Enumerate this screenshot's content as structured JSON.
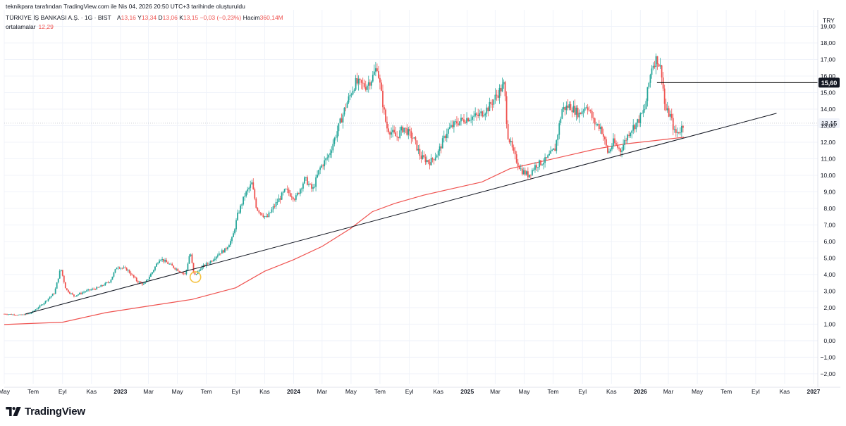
{
  "header": {
    "generated_line": "teknikpara tarafından TradingView.com ile Nis 04, 2026 20:50 UTC+3 tarihinde oluşturuldu",
    "symbol": "TÜRKİYE İŞ BANKASI A.Ş. · 1G · BIST",
    "ohlc": [
      {
        "label": "A",
        "value": "13,16"
      },
      {
        "label": "Y",
        "value": "13,34"
      },
      {
        "label": "D",
        "value": "13,06"
      },
      {
        "label": "K",
        "value": "13,15"
      }
    ],
    "change": "−0,03 (−0,23%)",
    "volume_label": "Hacim",
    "volume_value": "360,14M",
    "ma_label": "ortalamalar",
    "ma_value": "12,29"
  },
  "brand": {
    "text": "TradingView"
  },
  "colors": {
    "up": "#26a69a",
    "down": "#ef5350",
    "ma": "#ef5350",
    "trendline": "#131722",
    "grid": "#f0f3fa",
    "axis_text": "#131722",
    "marker": "#f5c242"
  },
  "chart_data": {
    "type": "candlestick",
    "currency": "TRY",
    "y_axis": {
      "range": [
        -2.6,
        20.0
      ],
      "ticks": [
        "−2,00",
        "−1,00",
        "0,00",
        "1,00",
        "2,00",
        "3,00",
        "4,00",
        "5,00",
        "6,00",
        "7,00",
        "8,00",
        "9,00",
        "10,00",
        "11,00",
        "12,00",
        "13,00",
        "14,00",
        "15,00",
        "16,00",
        "17,00",
        "18,00",
        "19,00"
      ],
      "tick_values": [
        -2,
        -1,
        0,
        1,
        2,
        3,
        4,
        5,
        6,
        7,
        8,
        9,
        10,
        11,
        12,
        13,
        14,
        15,
        16,
        17,
        18,
        19
      ]
    },
    "x_axis": {
      "range": [
        "2022-05-01",
        "2027-01-10"
      ],
      "ticks": [
        {
          "label": "May",
          "date": "2022-05-01",
          "bold": false
        },
        {
          "label": "Tem",
          "date": "2022-07-01",
          "bold": false
        },
        {
          "label": "Eyl",
          "date": "2022-09-01",
          "bold": false
        },
        {
          "label": "Kas",
          "date": "2022-11-01",
          "bold": false
        },
        {
          "label": "2023",
          "date": "2023-01-01",
          "bold": true
        },
        {
          "label": "Mar",
          "date": "2023-03-01",
          "bold": false
        },
        {
          "label": "May",
          "date": "2023-05-01",
          "bold": false
        },
        {
          "label": "Tem",
          "date": "2023-07-01",
          "bold": false
        },
        {
          "label": "Eyl",
          "date": "2023-09-01",
          "bold": false
        },
        {
          "label": "Kas",
          "date": "2023-11-01",
          "bold": false
        },
        {
          "label": "2024",
          "date": "2024-01-01",
          "bold": true
        },
        {
          "label": "Mar",
          "date": "2024-03-01",
          "bold": false
        },
        {
          "label": "May",
          "date": "2024-05-01",
          "bold": false
        },
        {
          "label": "Tem",
          "date": "2024-07-01",
          "bold": false
        },
        {
          "label": "Eyl",
          "date": "2024-09-01",
          "bold": false
        },
        {
          "label": "Kas",
          "date": "2024-11-01",
          "bold": false
        },
        {
          "label": "2025",
          "date": "2025-01-01",
          "bold": true
        },
        {
          "label": "Mar",
          "date": "2025-03-01",
          "bold": false
        },
        {
          "label": "May",
          "date": "2025-05-01",
          "bold": false
        },
        {
          "label": "Tem",
          "date": "2025-07-01",
          "bold": false
        },
        {
          "label": "Eyl",
          "date": "2025-09-01",
          "bold": false
        },
        {
          "label": "Kas",
          "date": "2025-11-01",
          "bold": false
        },
        {
          "label": "2026",
          "date": "2026-01-01",
          "bold": true
        },
        {
          "label": "Mar",
          "date": "2026-03-01",
          "bold": false
        },
        {
          "label": "May",
          "date": "2026-05-01",
          "bold": false
        },
        {
          "label": "Tem",
          "date": "2026-07-01",
          "bold": false
        },
        {
          "label": "Eyl",
          "date": "2026-09-01",
          "bold": false
        },
        {
          "label": "Kas",
          "date": "2026-11-01",
          "bold": false
        },
        {
          "label": "2027",
          "date": "2027-01-01",
          "bold": true
        }
      ]
    },
    "price_path": [
      [
        "2022-05-01",
        1.62
      ],
      [
        "2022-06-05",
        1.55
      ],
      [
        "2022-06-25",
        1.65
      ],
      [
        "2022-07-20",
        2.2
      ],
      [
        "2022-08-15",
        2.9
      ],
      [
        "2022-08-28",
        4.4
      ],
      [
        "2022-09-08",
        3.1
      ],
      [
        "2022-09-25",
        2.7
      ],
      [
        "2022-10-20",
        3.0
      ],
      [
        "2022-11-15",
        3.2
      ],
      [
        "2022-12-10",
        3.6
      ],
      [
        "2022-12-25",
        4.5
      ],
      [
        "2023-01-15",
        4.3
      ],
      [
        "2023-02-05",
        3.6
      ],
      [
        "2023-02-20",
        3.4
      ],
      [
        "2023-03-10",
        4.2
      ],
      [
        "2023-03-25",
        5.0
      ],
      [
        "2023-04-15",
        4.6
      ],
      [
        "2023-05-01",
        4.3
      ],
      [
        "2023-05-18",
        4.0
      ],
      [
        "2023-05-28",
        5.4
      ],
      [
        "2023-06-05",
        3.9
      ],
      [
        "2023-06-20",
        4.4
      ],
      [
        "2023-07-10",
        4.8
      ],
      [
        "2023-07-28",
        5.3
      ],
      [
        "2023-08-10",
        5.5
      ],
      [
        "2023-08-25",
        6.2
      ],
      [
        "2023-09-05",
        7.6
      ],
      [
        "2023-09-20",
        8.8
      ],
      [
        "2023-10-05",
        9.5
      ],
      [
        "2023-10-15",
        8.0
      ],
      [
        "2023-11-05",
        7.4
      ],
      [
        "2023-11-25",
        8.3
      ],
      [
        "2023-12-15",
        9.1
      ],
      [
        "2024-01-05",
        8.6
      ],
      [
        "2024-01-25",
        9.8
      ],
      [
        "2024-02-10",
        9.1
      ],
      [
        "2024-02-25",
        10.4
      ],
      [
        "2024-03-15",
        11.2
      ],
      [
        "2024-04-01",
        12.6
      ],
      [
        "2024-04-20",
        14.2
      ],
      [
        "2024-05-10",
        15.6
      ],
      [
        "2024-06-01",
        15.4
      ],
      [
        "2024-06-15",
        15.9
      ],
      [
        "2024-06-25",
        16.6
      ],
      [
        "2024-07-05",
        14.7
      ],
      [
        "2024-07-15",
        12.9
      ],
      [
        "2024-08-05",
        12.3
      ],
      [
        "2024-08-20",
        12.9
      ],
      [
        "2024-09-10",
        12.2
      ],
      [
        "2024-09-25",
        11.1
      ],
      [
        "2024-10-15",
        10.8
      ],
      [
        "2024-11-01",
        11.4
      ],
      [
        "2024-11-20",
        12.7
      ],
      [
        "2024-12-10",
        13.2
      ],
      [
        "2025-01-05",
        13.5
      ],
      [
        "2025-01-25",
        13.6
      ],
      [
        "2025-02-15",
        14.1
      ],
      [
        "2025-03-10",
        15.1
      ],
      [
        "2025-03-20",
        15.5
      ],
      [
        "2025-03-27",
        12.5
      ],
      [
        "2025-04-10",
        11.2
      ],
      [
        "2025-04-25",
        10.3
      ],
      [
        "2025-05-10",
        10.0
      ],
      [
        "2025-05-25",
        10.6
      ],
      [
        "2025-06-15",
        10.9
      ],
      [
        "2025-07-05",
        11.6
      ],
      [
        "2025-07-20",
        14.0
      ],
      [
        "2025-08-05",
        14.2
      ],
      [
        "2025-08-25",
        13.7
      ],
      [
        "2025-09-10",
        14.3
      ],
      [
        "2025-09-25",
        13.2
      ],
      [
        "2025-10-10",
        12.9
      ],
      [
        "2025-10-25",
        11.3
      ],
      [
        "2025-11-05",
        12.0
      ],
      [
        "2025-11-20",
        11.5
      ],
      [
        "2025-12-10",
        12.7
      ],
      [
        "2025-12-28",
        13.3
      ],
      [
        "2026-01-10",
        14.0
      ],
      [
        "2026-01-25",
        16.6
      ],
      [
        "2026-02-05",
        17.1
      ],
      [
        "2026-02-15",
        16.2
      ],
      [
        "2026-02-22",
        14.0
      ],
      [
        "2026-03-05",
        13.6
      ],
      [
        "2026-03-15",
        12.5
      ],
      [
        "2026-03-25",
        12.7
      ],
      [
        "2026-04-03",
        13.15
      ]
    ],
    "moving_average": [
      [
        "2022-05-01",
        0.98
      ],
      [
        "2022-09-01",
        1.12
      ],
      [
        "2022-12-01",
        1.7
      ],
      [
        "2023-03-01",
        2.1
      ],
      [
        "2023-06-01",
        2.5
      ],
      [
        "2023-09-01",
        3.2
      ],
      [
        "2023-11-01",
        4.2
      ],
      [
        "2024-01-01",
        4.9
      ],
      [
        "2024-03-01",
        5.7
      ],
      [
        "2024-05-01",
        6.8
      ],
      [
        "2024-06-15",
        7.8
      ],
      [
        "2024-08-01",
        8.3
      ],
      [
        "2024-10-01",
        8.8
      ],
      [
        "2024-12-01",
        9.2
      ],
      [
        "2025-02-01",
        9.6
      ],
      [
        "2025-04-01",
        10.4
      ],
      [
        "2025-06-01",
        10.8
      ],
      [
        "2025-08-01",
        11.2
      ],
      [
        "2025-10-01",
        11.6
      ],
      [
        "2025-12-01",
        11.9
      ],
      [
        "2026-02-01",
        12.1
      ],
      [
        "2026-04-03",
        12.3
      ]
    ],
    "trendline": {
      "start": [
        "2022-06-15",
        1.62
      ],
      "end": [
        "2026-10-15",
        13.75
      ]
    },
    "horizontal_line": {
      "start": "2026-02-05",
      "value": 15.6,
      "label": "15,60"
    },
    "last_price_label": "13,15",
    "last_price": 13.15,
    "marker": {
      "date": "2023-06-08",
      "value": 3.85
    }
  }
}
